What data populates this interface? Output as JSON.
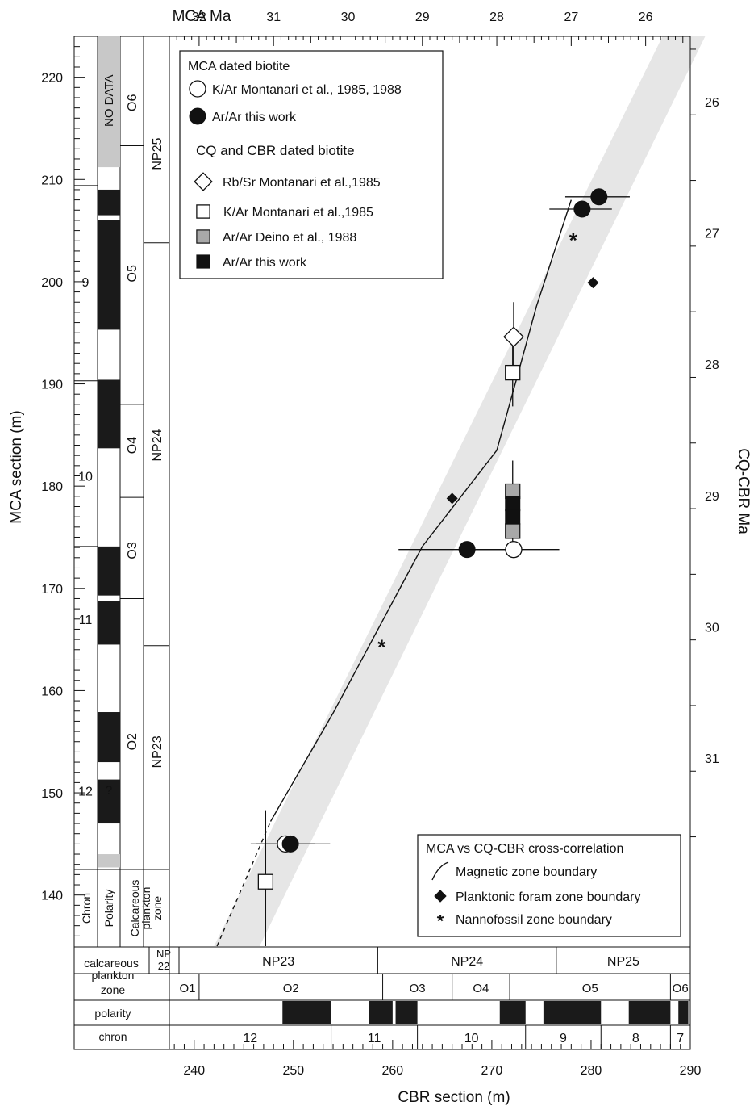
{
  "chart_data": {
    "type": "scatter",
    "axes": {
      "top": {
        "label": "MCA Ma",
        "range": [
          32.4,
          25.4
        ],
        "ticks": [
          "32",
          "31",
          "30",
          "29",
          "28",
          "27",
          "26"
        ]
      },
      "bottom": {
        "label": "CBR section (m)",
        "range": [
          237.5,
          290
        ],
        "ticks": [
          "240",
          "250",
          "260",
          "270",
          "280",
          "290"
        ]
      },
      "left": {
        "label": "MCA section (m)",
        "range": [
          135,
          224
        ],
        "ticks": [
          "140",
          "150",
          "160",
          "170",
          "180",
          "190",
          "200",
          "210",
          "220"
        ]
      },
      "right": {
        "label": "CQ-CBR Ma",
        "ticks": [
          "26",
          "27",
          "28",
          "29",
          "30",
          "31"
        ]
      }
    },
    "legend_top": {
      "heading1": "MCA dated biotite",
      "items1": [
        {
          "marker": "circle-open",
          "label": "K/Ar Montanari et al., 1985, 1988"
        },
        {
          "marker": "circle-filled",
          "label": "Ar/Ar this work"
        }
      ],
      "heading2": "CQ and CBR dated biotite",
      "items2": [
        {
          "marker": "diamond-open",
          "label": "Rb/Sr Montanari et al.,1985"
        },
        {
          "marker": "square-open",
          "label": "K/Ar Montanari et al.,1985"
        },
        {
          "marker": "square-gray",
          "label": "Ar/Ar Deino et al., 1988"
        },
        {
          "marker": "square-filled",
          "label": "Ar/Ar this work"
        }
      ]
    },
    "legend_bottom": {
      "heading": "MCA vs CQ-CBR cross-correlation",
      "items": [
        {
          "marker": "line",
          "label": "Magnetic zone boundary"
        },
        {
          "marker": "diamond-filled",
          "label": "Planktonic foram zone boundary"
        },
        {
          "marker": "asterisk",
          "label": "Nannofossil zone boundary"
        }
      ]
    },
    "correlation_line": [
      [
        247.7,
        147.2
      ],
      [
        254,
        157.8
      ],
      [
        263,
        174.1
      ],
      [
        270.5,
        183.5
      ],
      [
        272.5,
        190.5
      ],
      [
        274.5,
        197.6
      ],
      [
        278,
        208
      ]
    ],
    "correlation_line_dashed": [
      [
        242.3,
        135
      ],
      [
        247.7,
        147.2
      ]
    ],
    "band": [
      [
        242,
        135
      ],
      [
        287.2,
        224
      ],
      [
        291.5,
        224
      ],
      [
        246.6,
        135
      ]
    ],
    "markers": [
      {
        "type": "circle-filled",
        "x": 280.8,
        "y": 208.3,
        "xerr": [
          277.4,
          283.9
        ]
      },
      {
        "type": "circle-filled",
        "x": 279.1,
        "y": 207.1,
        "xerr": [
          275.8,
          282.1
        ]
      },
      {
        "type": "circle-filled",
        "x": 267.5,
        "y": 173.8,
        "xerr": [
          260.6,
          272.2
        ]
      },
      {
        "type": "circle-filled",
        "x": 249.7,
        "y": 145.0,
        "xerr": [
          245.7,
          253.7
        ]
      },
      {
        "type": "circle-open",
        "x": 272.2,
        "y": 173.8,
        "xerr": [
          266.8,
          276.8
        ]
      },
      {
        "type": "circle-open",
        "x": 249.2,
        "y": 145.0,
        "xerr": [
          246.2,
          252.2
        ]
      },
      {
        "type": "diamond-open",
        "x": 272.2,
        "y": 194.6,
        "yerr": [
          191.8,
          198.0
        ]
      },
      {
        "type": "square-open",
        "x": 272.1,
        "y": 191.1,
        "yerr": [
          187.8,
          195.0
        ]
      },
      {
        "type": "square-open",
        "x": 247.2,
        "y": 141.3,
        "yerr": [
          135.0,
          148.3
        ]
      },
      {
        "type": "square-gray",
        "x": 272.1,
        "y": 179.5
      },
      {
        "type": "square-gray",
        "x": 272.1,
        "y": 175.6
      },
      {
        "type": "square-filled",
        "x": 272.1,
        "y": 178.3
      },
      {
        "type": "square-filled",
        "x": 272.1,
        "y": 177.0
      },
      {
        "type": "diamond-filled",
        "x": 280.2,
        "y": 199.9
      },
      {
        "type": "diamond-filled",
        "x": 266.0,
        "y": 178.8
      },
      {
        "type": "asterisk",
        "x": 278.2,
        "y": 204.2
      },
      {
        "type": "asterisk",
        "x": 258.9,
        "y": 164.4
      }
    ],
    "left_column": {
      "header": {
        "chron": "Chron",
        "polarity": "Polarity",
        "plankton": "Calcareous plankton zone"
      },
      "no_data": "NO DATA",
      "question_mark": "?",
      "chron_labels": [
        {
          "label": "9",
          "y": 200
        },
        {
          "label": "10",
          "y": 181
        },
        {
          "label": "11",
          "y": 167
        },
        {
          "label": "12",
          "y": 150.2
        }
      ],
      "chron_bounds": [
        209.4,
        190.3,
        174.1,
        157.7
      ],
      "polarity_black": [
        [
          206.5,
          209.0
        ],
        [
          195.3,
          206.0
        ],
        [
          183.7,
          190.4
        ],
        [
          169.3,
          174.1
        ],
        [
          164.5,
          168.8
        ],
        [
          153.0,
          157.9
        ],
        [
          147.0,
          151.3
        ]
      ],
      "polarity_gray": [
        [
          211.2,
          224
        ],
        [
          142.7,
          144.0
        ]
      ],
      "foram_zones": [
        {
          "label": "O6",
          "y": 217.5
        },
        {
          "label": "O5",
          "y": 200.8
        },
        {
          "label": "O4",
          "y": 184.0
        },
        {
          "label": "O3",
          "y": 173.7
        },
        {
          "label": "O2",
          "y": 155.0
        }
      ],
      "foram_bounds": [
        213.3,
        188.0,
        178.9,
        169.0
      ],
      "nanno_zones": [
        {
          "label": "NP25",
          "y": 212.5
        },
        {
          "label": "NP24",
          "y": 184.0
        },
        {
          "label": "NP23",
          "y": 154.0
        }
      ],
      "nanno_bounds": [
        203.8,
        164.4
      ]
    },
    "bottom_column": {
      "row_labels": {
        "plankton": "calcareous plankton zone",
        "polarity": "polarity",
        "chron": "chron"
      },
      "nanno_zones": [
        {
          "label": "NP 22",
          "from": 237.5,
          "to": 237.5
        },
        {
          "label": "NP23",
          "from": 237.5,
          "to": 258.5
        },
        {
          "label": "NP24",
          "from": 258.5,
          "to": 276.5
        },
        {
          "label": "NP25",
          "from": 276.5,
          "to": 290
        }
      ],
      "foram_zones": [
        {
          "label": "O1",
          "from": 237.5,
          "to": 240.5
        },
        {
          "label": "O2",
          "from": 240.5,
          "to": 259
        },
        {
          "label": "O3",
          "from": 259,
          "to": 266
        },
        {
          "label": "O4",
          "from": 266,
          "to": 271.8
        },
        {
          "label": "O5",
          "from": 271.8,
          "to": 288
        },
        {
          "label": "O6",
          "from": 288,
          "to": 290
        }
      ],
      "polarity_black": [
        [
          248.9,
          253.8
        ],
        [
          257.6,
          260
        ],
        [
          260.3,
          262.5
        ],
        [
          270.8,
          273.4
        ],
        [
          275.2,
          281
        ],
        [
          283.8,
          288
        ],
        [
          288.8,
          289.8
        ]
      ],
      "chron_zones": [
        {
          "label": "12",
          "from": 237.5,
          "to": 253.8
        },
        {
          "label": "11",
          "from": 253.8,
          "to": 262.5
        },
        {
          "label": "10",
          "from": 262.5,
          "to": 273.4
        },
        {
          "label": "9",
          "from": 273.4,
          "to": 281
        },
        {
          "label": "8",
          "from": 281,
          "to": 288
        },
        {
          "label": "7",
          "from": 288,
          "to": 290
        }
      ]
    }
  }
}
